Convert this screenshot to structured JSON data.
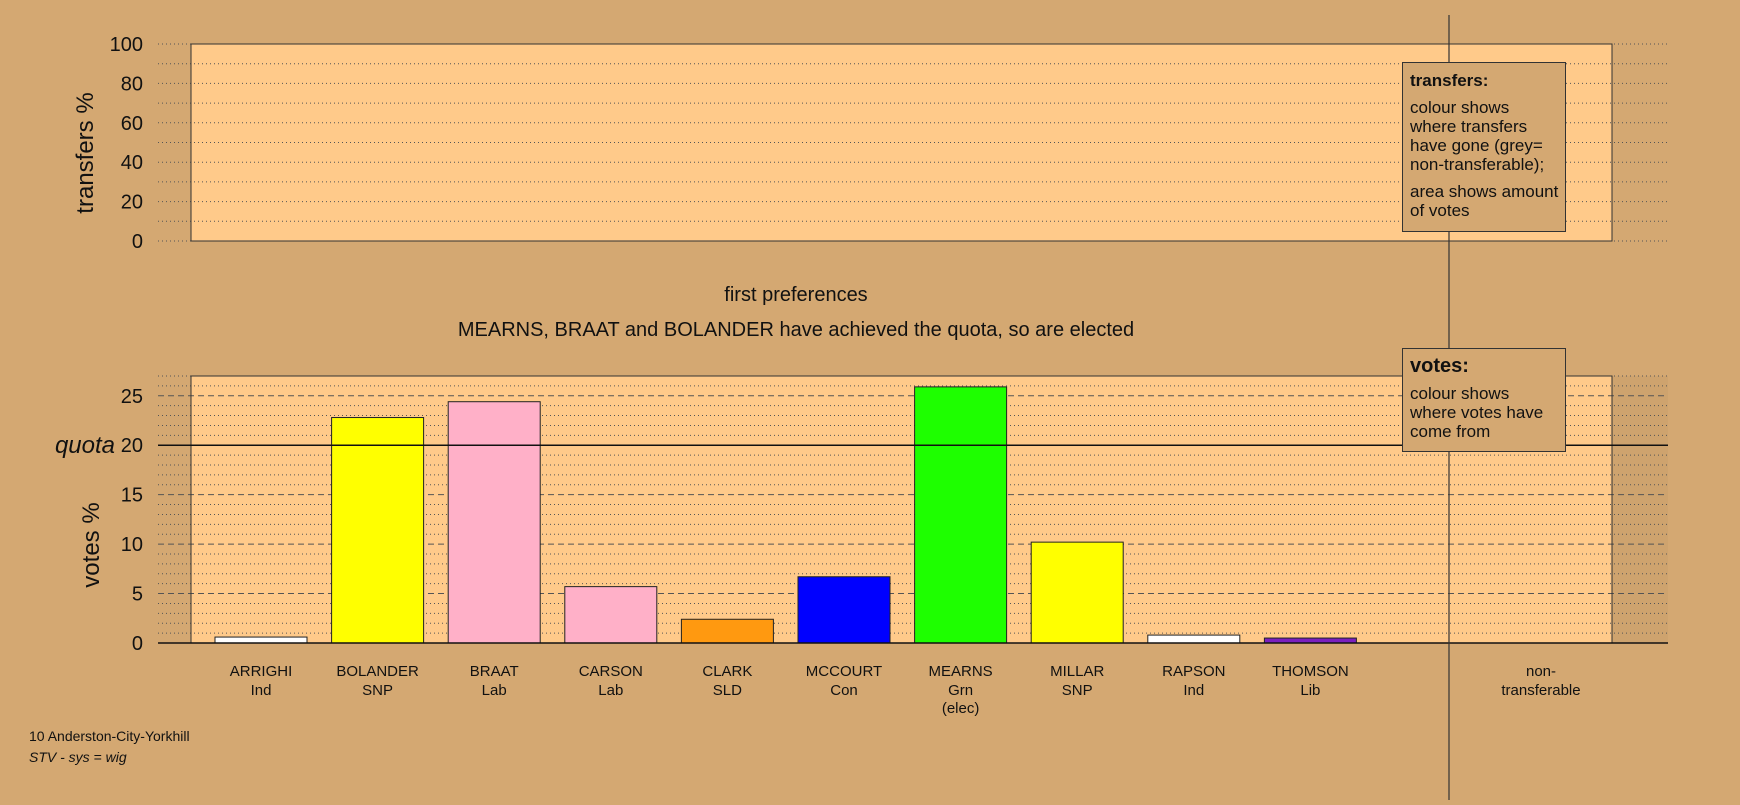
{
  "chart_data": [
    {
      "type": "bar",
      "panel": "transfers",
      "ylabel": "transfers %",
      "ylim": [
        0,
        100
      ],
      "yticks": [
        0,
        20,
        40,
        60,
        80,
        100
      ],
      "minor_grid_step": 10,
      "values": [],
      "legend": {
        "title": "transfers:",
        "lines": [
          "colour shows where transfers have gone (grey= non-transferable);",
          "area shows amount of votes"
        ]
      }
    },
    {
      "type": "bar",
      "panel": "votes",
      "title": "first preferences",
      "subtitle": "MEARNS, BRAAT and BOLANDER have achieved the quota, so are elected",
      "ylabel": "votes %",
      "ylim": [
        0,
        27
      ],
      "yticks": [
        0,
        5,
        10,
        15,
        20,
        25
      ],
      "minor_grid_step": 1,
      "quota": 20,
      "quota_label": "quota",
      "categories": [
        {
          "name": "ARRIGHI",
          "party": "Ind",
          "note": ""
        },
        {
          "name": "BOLANDER",
          "party": "SNP",
          "note": ""
        },
        {
          "name": "BRAAT",
          "party": "Lab",
          "note": ""
        },
        {
          "name": "CARSON",
          "party": "Lab",
          "note": ""
        },
        {
          "name": "CLARK",
          "party": "SLD",
          "note": ""
        },
        {
          "name": "MCCOURT",
          "party": "Con",
          "note": ""
        },
        {
          "name": "MEARNS",
          "party": "Grn",
          "note": "(elec)"
        },
        {
          "name": "MILLAR",
          "party": "SNP",
          "note": ""
        },
        {
          "name": "RAPSON",
          "party": "Ind",
          "note": ""
        },
        {
          "name": "THOMSON",
          "party": "Lib",
          "note": ""
        }
      ],
      "values": [
        0.6,
        22.8,
        24.4,
        5.7,
        2.4,
        6.7,
        25.9,
        10.2,
        0.8,
        0.5
      ],
      "colors": [
        "#FFFFFF",
        "#FFFF00",
        "#FFB0C8",
        "#FFB0C8",
        "#FF9910",
        "#0000FF",
        "#1EFF00",
        "#FFFF00",
        "#FFFFFF",
        "#7A1FBF"
      ],
      "nontransferable_label": "non-\ntransferable",
      "legend": {
        "title": "votes:",
        "lines": [
          "colour shows where votes have come from"
        ]
      }
    }
  ],
  "footer": {
    "line1": "10 Anderston-City-Yorkhill",
    "line2": "STV - sys = wig"
  }
}
